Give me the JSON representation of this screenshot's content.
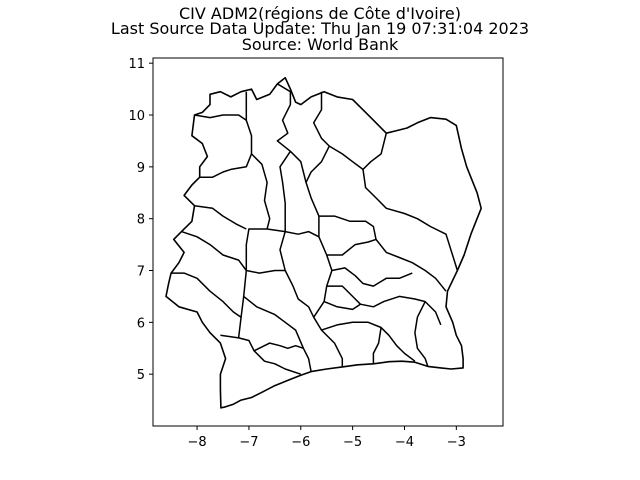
{
  "title": {
    "line1": "CIV ADM2(régions de Côte d'Ivoire)",
    "line2": "Last Source Data Update: Thu Jan 19 07:31:04 2023",
    "line3": "Source: World Bank"
  },
  "chart_data": {
    "type": "map",
    "xlim": [
      -8.85,
      -2.1
    ],
    "ylim": [
      4.0,
      11.1
    ],
    "x_ticks": [
      -8,
      -7,
      -6,
      -5,
      -4,
      -3
    ],
    "y_ticks": [
      5,
      6,
      7,
      8,
      9,
      10,
      11
    ],
    "x_tick_labels": [
      "−8",
      "−7",
      "−6",
      "−5",
      "−4",
      "−3"
    ],
    "y_tick_labels": [
      "5",
      "6",
      "7",
      "8",
      "9",
      "10",
      "11"
    ],
    "grid": false,
    "fill": "#ffffff",
    "edge_color": "#000000",
    "country_outline": [
      [
        -7.54,
        4.35
      ],
      [
        -7.45,
        4.37
      ],
      [
        -7.3,
        4.42
      ],
      [
        -7.15,
        4.5
      ],
      [
        -6.95,
        4.55
      ],
      [
        -6.75,
        4.65
      ],
      [
        -6.5,
        4.78
      ],
      [
        -6.25,
        4.88
      ],
      [
        -6.0,
        4.98
      ],
      [
        -5.8,
        5.05
      ],
      [
        -5.5,
        5.1
      ],
      [
        -5.2,
        5.14
      ],
      [
        -4.9,
        5.18
      ],
      [
        -4.6,
        5.2
      ],
      [
        -4.3,
        5.24
      ],
      [
        -4.05,
        5.25
      ],
      [
        -3.8,
        5.23
      ],
      [
        -3.55,
        5.15
      ],
      [
        -3.3,
        5.12
      ],
      [
        -3.1,
        5.1
      ],
      [
        -2.87,
        5.12
      ],
      [
        -2.87,
        5.3
      ],
      [
        -2.9,
        5.55
      ],
      [
        -3.0,
        5.75
      ],
      [
        -3.07,
        6.0
      ],
      [
        -3.2,
        6.3
      ],
      [
        -3.17,
        6.6
      ],
      [
        -2.98,
        7.0
      ],
      [
        -2.85,
        7.3
      ],
      [
        -2.72,
        7.7
      ],
      [
        -2.58,
        8.05
      ],
      [
        -2.52,
        8.2
      ],
      [
        -2.6,
        8.5
      ],
      [
        -2.7,
        8.75
      ],
      [
        -2.8,
        9.0
      ],
      [
        -2.9,
        9.35
      ],
      [
        -3.0,
        9.8
      ],
      [
        -3.2,
        9.92
      ],
      [
        -3.5,
        9.95
      ],
      [
        -3.75,
        9.85
      ],
      [
        -3.95,
        9.75
      ],
      [
        -4.15,
        9.7
      ],
      [
        -4.35,
        9.65
      ],
      [
        -4.6,
        9.9
      ],
      [
        -4.8,
        10.1
      ],
      [
        -5.0,
        10.3
      ],
      [
        -5.3,
        10.35
      ],
      [
        -5.55,
        10.45
      ],
      [
        -5.8,
        10.35
      ],
      [
        -6.0,
        10.2
      ],
      [
        -6.1,
        10.25
      ],
      [
        -6.2,
        10.5
      ],
      [
        -6.3,
        10.72
      ],
      [
        -6.45,
        10.6
      ],
      [
        -6.6,
        10.4
      ],
      [
        -6.85,
        10.3
      ],
      [
        -6.95,
        10.5
      ],
      [
        -7.15,
        10.45
      ],
      [
        -7.35,
        10.35
      ],
      [
        -7.55,
        10.45
      ],
      [
        -7.75,
        10.4
      ],
      [
        -7.75,
        10.2
      ],
      [
        -7.9,
        10.05
      ],
      [
        -8.05,
        10.0
      ],
      [
        -8.1,
        9.6
      ],
      [
        -7.9,
        9.45
      ],
      [
        -7.8,
        9.2
      ],
      [
        -7.95,
        9.0
      ],
      [
        -7.95,
        8.8
      ],
      [
        -8.1,
        8.65
      ],
      [
        -8.25,
        8.45
      ],
      [
        -8.05,
        8.25
      ],
      [
        -8.1,
        7.95
      ],
      [
        -8.3,
        7.75
      ],
      [
        -8.45,
        7.6
      ],
      [
        -8.25,
        7.35
      ],
      [
        -8.35,
        7.15
      ],
      [
        -8.5,
        6.95
      ],
      [
        -8.55,
        6.75
      ],
      [
        -8.6,
        6.5
      ],
      [
        -8.35,
        6.3
      ],
      [
        -8.0,
        6.2
      ],
      [
        -7.9,
        6.0
      ],
      [
        -7.75,
        5.8
      ],
      [
        -7.55,
        5.6
      ],
      [
        -7.45,
        5.3
      ],
      [
        -7.55,
        5.0
      ],
      [
        -7.55,
        4.7
      ]
    ],
    "internal_borders": [
      [
        [
          -7.55,
          5.75
        ],
        [
          -7.2,
          5.7
        ],
        [
          -7.0,
          5.65
        ],
        [
          -6.9,
          5.45
        ],
        [
          -6.7,
          5.25
        ],
        [
          -6.5,
          5.2
        ],
        [
          -6.3,
          5.1
        ],
        [
          -6.0,
          5.0
        ]
      ],
      [
        [
          -7.05,
          10.45
        ],
        [
          -7.05,
          9.9
        ],
        [
          -6.95,
          9.6
        ],
        [
          -6.95,
          9.25
        ],
        [
          -6.75,
          9.05
        ],
        [
          -6.65,
          8.7
        ],
        [
          -6.7,
          8.35
        ],
        [
          -6.6,
          8.0
        ],
        [
          -6.65,
          7.8
        ]
      ],
      [
        [
          -7.2,
          5.7
        ],
        [
          -7.15,
          6.1
        ],
        [
          -7.1,
          6.5
        ],
        [
          -7.05,
          7.0
        ],
        [
          -7.05,
          7.5
        ],
        [
          -7.0,
          7.8
        ],
        [
          -6.65,
          7.8
        ],
        [
          -6.3,
          7.75
        ],
        [
          -6.05,
          7.7
        ],
        [
          -5.85,
          7.75
        ],
        [
          -5.65,
          7.65
        ]
      ],
      [
        [
          -6.45,
          10.6
        ],
        [
          -6.2,
          10.45
        ],
        [
          -6.2,
          10.2
        ],
        [
          -6.35,
          9.9
        ],
        [
          -6.25,
          9.65
        ],
        [
          -6.45,
          9.5
        ],
        [
          -6.2,
          9.3
        ],
        [
          -6.0,
          9.1
        ],
        [
          -5.9,
          8.7
        ],
        [
          -5.8,
          8.4
        ],
        [
          -5.65,
          8.05
        ],
        [
          -5.65,
          7.65
        ],
        [
          -5.5,
          7.3
        ],
        [
          -5.4,
          7.0
        ],
        [
          -5.5,
          6.7
        ],
        [
          -5.55,
          6.4
        ],
        [
          -5.75,
          6.1
        ],
        [
          -5.6,
          5.85
        ],
        [
          -5.35,
          5.6
        ],
        [
          -5.2,
          5.3
        ],
        [
          -5.2,
          5.14
        ]
      ],
      [
        [
          -6.2,
          9.3
        ],
        [
          -6.4,
          9.0
        ],
        [
          -6.35,
          8.7
        ],
        [
          -6.3,
          8.3
        ],
        [
          -6.3,
          7.75
        ]
      ],
      [
        [
          -6.3,
          7.75
        ],
        [
          -6.4,
          7.4
        ],
        [
          -6.3,
          7.0
        ],
        [
          -6.15,
          6.7
        ],
        [
          -6.05,
          6.45
        ],
        [
          -5.85,
          6.3
        ],
        [
          -5.75,
          6.1
        ]
      ],
      [
        [
          -7.05,
          7.0
        ],
        [
          -6.8,
          6.95
        ],
        [
          -6.5,
          7.0
        ],
        [
          -6.3,
          7.0
        ]
      ],
      [
        [
          -7.1,
          6.5
        ],
        [
          -6.85,
          6.3
        ],
        [
          -6.5,
          6.15
        ],
        [
          -6.3,
          6.0
        ],
        [
          -6.1,
          5.85
        ],
        [
          -5.95,
          5.5
        ],
        [
          -5.85,
          5.3
        ],
        [
          -5.8,
          5.05
        ]
      ],
      [
        [
          -6.9,
          5.45
        ],
        [
          -6.6,
          5.6
        ],
        [
          -6.4,
          5.55
        ],
        [
          -6.25,
          5.5
        ],
        [
          -6.1,
          5.55
        ],
        [
          -5.95,
          5.5
        ]
      ],
      [
        [
          -5.6,
          10.45
        ],
        [
          -5.6,
          10.1
        ],
        [
          -5.75,
          9.85
        ],
        [
          -5.6,
          9.55
        ],
        [
          -5.45,
          9.4
        ],
        [
          -5.2,
          9.25
        ],
        [
          -5.0,
          9.1
        ],
        [
          -4.8,
          8.95
        ],
        [
          -4.65,
          9.1
        ],
        [
          -4.45,
          9.25
        ],
        [
          -4.35,
          9.65
        ]
      ],
      [
        [
          -5.45,
          9.4
        ],
        [
          -5.6,
          9.1
        ],
        [
          -5.8,
          8.9
        ],
        [
          -5.9,
          8.7
        ]
      ],
      [
        [
          -4.8,
          8.95
        ],
        [
          -4.75,
          8.6
        ],
        [
          -4.55,
          8.4
        ],
        [
          -4.35,
          8.2
        ],
        [
          -4.0,
          8.1
        ],
        [
          -3.75,
          8.0
        ],
        [
          -3.5,
          7.85
        ],
        [
          -3.2,
          7.7
        ],
        [
          -2.98,
          7.0
        ]
      ],
      [
        [
          -5.65,
          8.05
        ],
        [
          -5.35,
          8.05
        ],
        [
          -5.05,
          7.95
        ],
        [
          -4.75,
          7.95
        ],
        [
          -4.6,
          7.85
        ],
        [
          -4.55,
          7.6
        ],
        [
          -4.35,
          7.35
        ],
        [
          -4.1,
          7.25
        ],
        [
          -3.85,
          7.15
        ],
        [
          -3.6,
          7.0
        ],
        [
          -3.4,
          6.85
        ],
        [
          -3.2,
          6.6
        ]
      ],
      [
        [
          -5.5,
          7.3
        ],
        [
          -5.2,
          7.3
        ],
        [
          -4.95,
          7.5
        ],
        [
          -4.7,
          7.55
        ],
        [
          -4.55,
          7.6
        ]
      ],
      [
        [
          -5.4,
          7.0
        ],
        [
          -5.15,
          7.05
        ],
        [
          -4.95,
          6.9
        ],
        [
          -4.8,
          6.75
        ],
        [
          -4.6,
          6.7
        ],
        [
          -4.35,
          6.85
        ],
        [
          -4.1,
          6.85
        ],
        [
          -3.85,
          6.95
        ]
      ],
      [
        [
          -5.5,
          6.7
        ],
        [
          -5.2,
          6.7
        ],
        [
          -5.0,
          6.5
        ],
        [
          -4.85,
          6.35
        ],
        [
          -4.6,
          6.3
        ],
        [
          -4.4,
          6.4
        ],
        [
          -4.1,
          6.5
        ],
        [
          -3.8,
          6.45
        ],
        [
          -3.6,
          6.4
        ],
        [
          -3.4,
          6.2
        ],
        [
          -3.3,
          5.95
        ]
      ],
      [
        [
          -5.55,
          6.4
        ],
        [
          -5.3,
          6.3
        ],
        [
          -5.0,
          6.25
        ],
        [
          -4.85,
          6.35
        ]
      ],
      [
        [
          -5.6,
          5.85
        ],
        [
          -5.3,
          5.95
        ],
        [
          -5.0,
          6.0
        ],
        [
          -4.7,
          6.0
        ],
        [
          -4.45,
          5.9
        ],
        [
          -4.3,
          5.75
        ],
        [
          -4.15,
          5.55
        ],
        [
          -4.0,
          5.4
        ],
        [
          -3.8,
          5.25
        ]
      ],
      [
        [
          -4.45,
          5.9
        ],
        [
          -4.5,
          5.6
        ],
        [
          -4.6,
          5.4
        ],
        [
          -4.6,
          5.2
        ]
      ],
      [
        [
          -3.6,
          6.4
        ],
        [
          -3.75,
          6.1
        ],
        [
          -3.8,
          5.8
        ],
        [
          -3.75,
          5.5
        ],
        [
          -3.6,
          5.3
        ],
        [
          -3.55,
          5.15
        ]
      ],
      [
        [
          -8.05,
          8.25
        ],
        [
          -7.7,
          8.2
        ],
        [
          -7.5,
          8.05
        ],
        [
          -7.25,
          7.9
        ],
        [
          -7.05,
          7.8
        ]
      ],
      [
        [
          -8.3,
          7.75
        ],
        [
          -8.0,
          7.65
        ],
        [
          -7.75,
          7.5
        ],
        [
          -7.5,
          7.3
        ],
        [
          -7.2,
          7.2
        ],
        [
          -7.05,
          7.0
        ]
      ],
      [
        [
          -8.5,
          6.95
        ],
        [
          -8.25,
          6.95
        ],
        [
          -8.0,
          6.85
        ],
        [
          -7.75,
          6.6
        ],
        [
          -7.5,
          6.4
        ],
        [
          -7.3,
          6.2
        ],
        [
          -7.15,
          6.1
        ]
      ],
      [
        [
          -7.95,
          8.8
        ],
        [
          -7.7,
          8.8
        ],
        [
          -7.5,
          8.9
        ],
        [
          -7.35,
          8.95
        ],
        [
          -7.05,
          9.0
        ],
        [
          -6.95,
          9.25
        ]
      ],
      [
        [
          -8.05,
          10.0
        ],
        [
          -7.75,
          9.95
        ],
        [
          -7.5,
          10.0
        ],
        [
          -7.2,
          10.0
        ],
        [
          -7.05,
          9.9
        ]
      ]
    ]
  }
}
